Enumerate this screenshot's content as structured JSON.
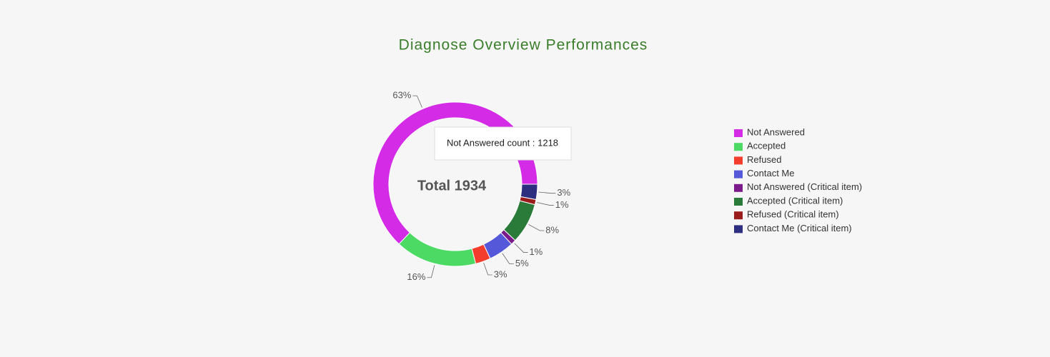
{
  "chart_data": {
    "type": "pie",
    "title": "Diagnose Overview Performances",
    "center_label": "Total 1934",
    "tooltip": "Not Answered count : 1218",
    "categories": [
      "Not Answered",
      "Accepted",
      "Refused",
      "Contact Me",
      "Not Answered (Critical item)",
      "Accepted (Critical item)",
      "Refused (Critical item)",
      "Contact Me (Critical item)"
    ],
    "values": [
      63,
      16,
      3,
      5,
      1,
      8,
      1,
      3
    ],
    "value_labels": [
      "63%",
      "16%",
      "3%",
      "5%",
      "1%",
      "8%",
      "1%",
      "3%"
    ],
    "colors": [
      "#d42be6",
      "#4cd964",
      "#f53d2d",
      "#5458d9",
      "#7b1a8a",
      "#2a7a3a",
      "#9b1c1c",
      "#2e2e80"
    ],
    "legend": "right"
  }
}
